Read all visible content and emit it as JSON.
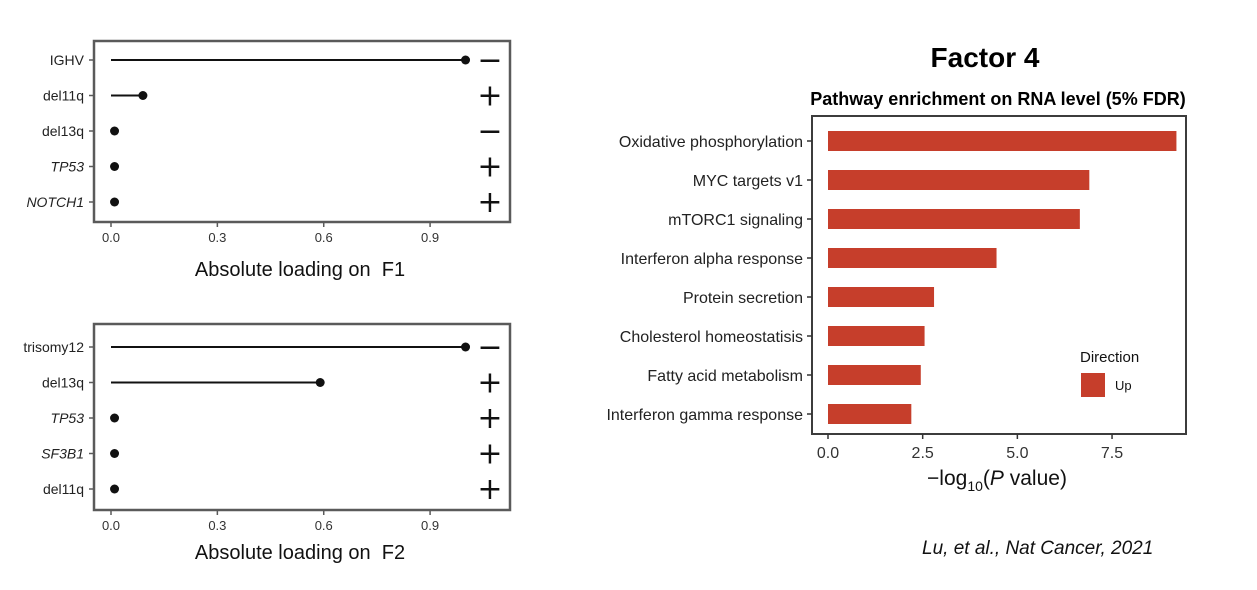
{
  "colors": {
    "bar_up": "#c63e2b",
    "lollipop": "#111111",
    "frame": "#5a5a5a"
  },
  "chart_data": [
    {
      "type": "lollipop",
      "xlabel": "Absolute loading on  F1",
      "xlim": [
        0,
        1.1
      ],
      "x_ticks": [
        "0.0",
        "0.3",
        "0.6",
        "0.9"
      ],
      "x_tick_values": [
        0,
        0.3,
        0.6,
        0.9
      ],
      "grid": false,
      "categories": [
        "IGHV",
        "del11q",
        "del13q",
        "TP53",
        "NOTCH1"
      ],
      "italic": [
        false,
        false,
        false,
        true,
        true
      ],
      "values": [
        1.0,
        0.09,
        0.01,
        0.01,
        0.01
      ],
      "signs": [
        "−",
        "+",
        "−",
        "+",
        "+"
      ]
    },
    {
      "type": "lollipop",
      "xlabel": "Absolute loading on  F2",
      "xlim": [
        0,
        1.1
      ],
      "x_ticks": [
        "0.0",
        "0.3",
        "0.6",
        "0.9"
      ],
      "x_tick_values": [
        0,
        0.3,
        0.6,
        0.9
      ],
      "grid": false,
      "categories": [
        "trisomy12",
        "del13q",
        "TP53",
        "SF3B1",
        "del11q"
      ],
      "italic": [
        false,
        false,
        true,
        true,
        false
      ],
      "values": [
        1.0,
        0.59,
        0.01,
        0.01,
        0.01
      ],
      "signs": [
        "−",
        "+",
        "+",
        "+",
        "+"
      ]
    },
    {
      "type": "bar",
      "orientation": "horizontal",
      "header": "Factor 4",
      "title": "Pathway enrichment on RNA level (5% FDR)",
      "xlabel_prefix": "−log",
      "xlabel_sub": "10",
      "xlabel_open": "(",
      "xlabel_p": "P",
      "xlabel_suffix": " value)",
      "xlim": [
        0,
        9.4
      ],
      "x_ticks": [
        "0.0",
        "2.5",
        "5.0",
        "7.5"
      ],
      "x_tick_values": [
        0,
        2.5,
        5.0,
        7.5
      ],
      "grid": false,
      "categories": [
        "Oxidative phosphorylation",
        "MYC targets v1",
        "mTORC1 signaling",
        "Interferon alpha response",
        "Protein secretion",
        "Cholesterol homeostatisis",
        "Fatty acid metabolism",
        "Interferon gamma response"
      ],
      "values": [
        9.2,
        6.9,
        6.65,
        4.45,
        2.8,
        2.55,
        2.45,
        2.2
      ],
      "legend": {
        "title": "Direction",
        "entries": [
          "Up"
        ],
        "position": "right"
      }
    }
  ],
  "citation": "Lu, et al., Nat Cancer, 2021"
}
